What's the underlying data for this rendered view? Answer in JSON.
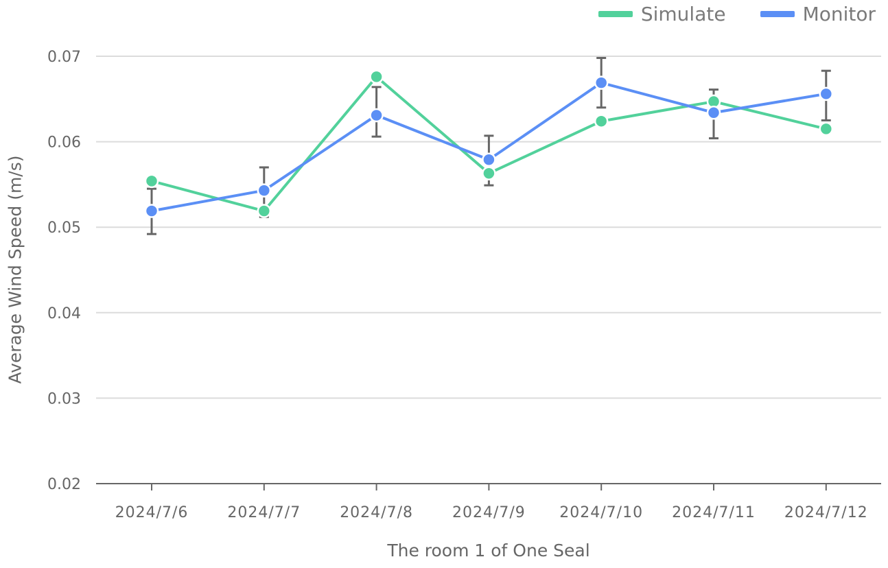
{
  "legend": {
    "simulate_label": "Simulate",
    "monitor_label": "Monitor"
  },
  "colors": {
    "simulate": "#52d19b",
    "monitor": "#5b8ff5",
    "grid": "#dcdcdc",
    "axis": "#666666",
    "errorbar": "#666666",
    "text": "#666666"
  },
  "chart_data": {
    "type": "line",
    "title": "",
    "xlabel": "The room 1 of One Seal",
    "ylabel": "Average Wind Speed (m/s)",
    "categories": [
      "2024/7/6",
      "2024/7/7",
      "2024/7/8",
      "2024/7/9",
      "2024/7/10",
      "2024/7/11",
      "2024/7/12"
    ],
    "ylim": [
      0.02,
      0.07
    ],
    "yticks": [
      "0.02",
      "0.03",
      "0.04",
      "0.05",
      "0.06",
      "0.07"
    ],
    "grid": "horizontal",
    "legend_position": "top-right",
    "series": [
      {
        "name": "Simulate",
        "values": [
          0.0554,
          0.0519,
          0.0676,
          0.0563,
          0.0624,
          0.0647,
          0.0615
        ]
      },
      {
        "name": "Monitor",
        "values": [
          0.0519,
          0.0543,
          0.0631,
          0.0579,
          0.0669,
          0.0634,
          0.0656
        ],
        "error_low": [
          0.0492,
          0.0512,
          0.0606,
          0.0549,
          0.064,
          0.0604,
          0.0625
        ],
        "error_high": [
          0.0545,
          0.057,
          0.0664,
          0.0607,
          0.0698,
          0.0661,
          0.0683
        ]
      }
    ]
  }
}
